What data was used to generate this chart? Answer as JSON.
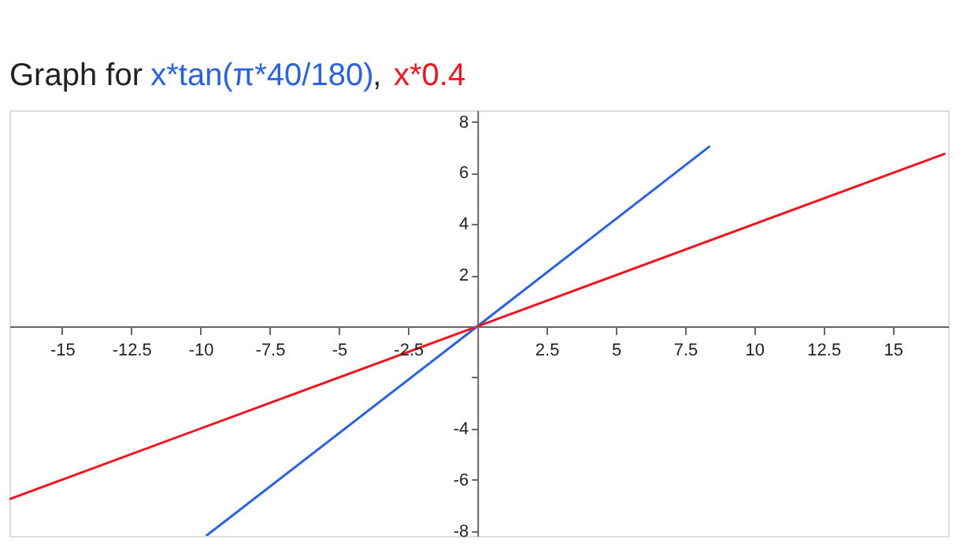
{
  "chart_data": {
    "type": "line",
    "title": "Graph for",
    "annotations": [
      ","
    ],
    "series": [
      {
        "name": "x*tan(π*40/180)",
        "color": "#2a62e0",
        "x": [
          -9.8,
          0,
          8.4
        ],
        "values": [
          -8.2,
          0,
          7.05
        ]
      },
      {
        "name": "x*0.4",
        "color": "#f0141e",
        "x": [
          -16.9,
          0,
          16.9
        ],
        "values": [
          -6.76,
          0,
          6.76
        ]
      }
    ],
    "xlim": [
      -16.9,
      17.0
    ],
    "ylim": [
      -8.2,
      8.45
    ],
    "xticks": [
      -15,
      -12.5,
      -10,
      -7.5,
      -5,
      -2.5,
      2.5,
      5,
      7.5,
      10,
      12.5,
      15
    ],
    "yticks": [
      -8,
      -6,
      -4,
      {
        "value": -2,
        "label": null
      },
      2,
      4,
      6,
      8
    ],
    "grid": false,
    "legend": "top left",
    "marker": "none",
    "line_style": "solid"
  }
}
